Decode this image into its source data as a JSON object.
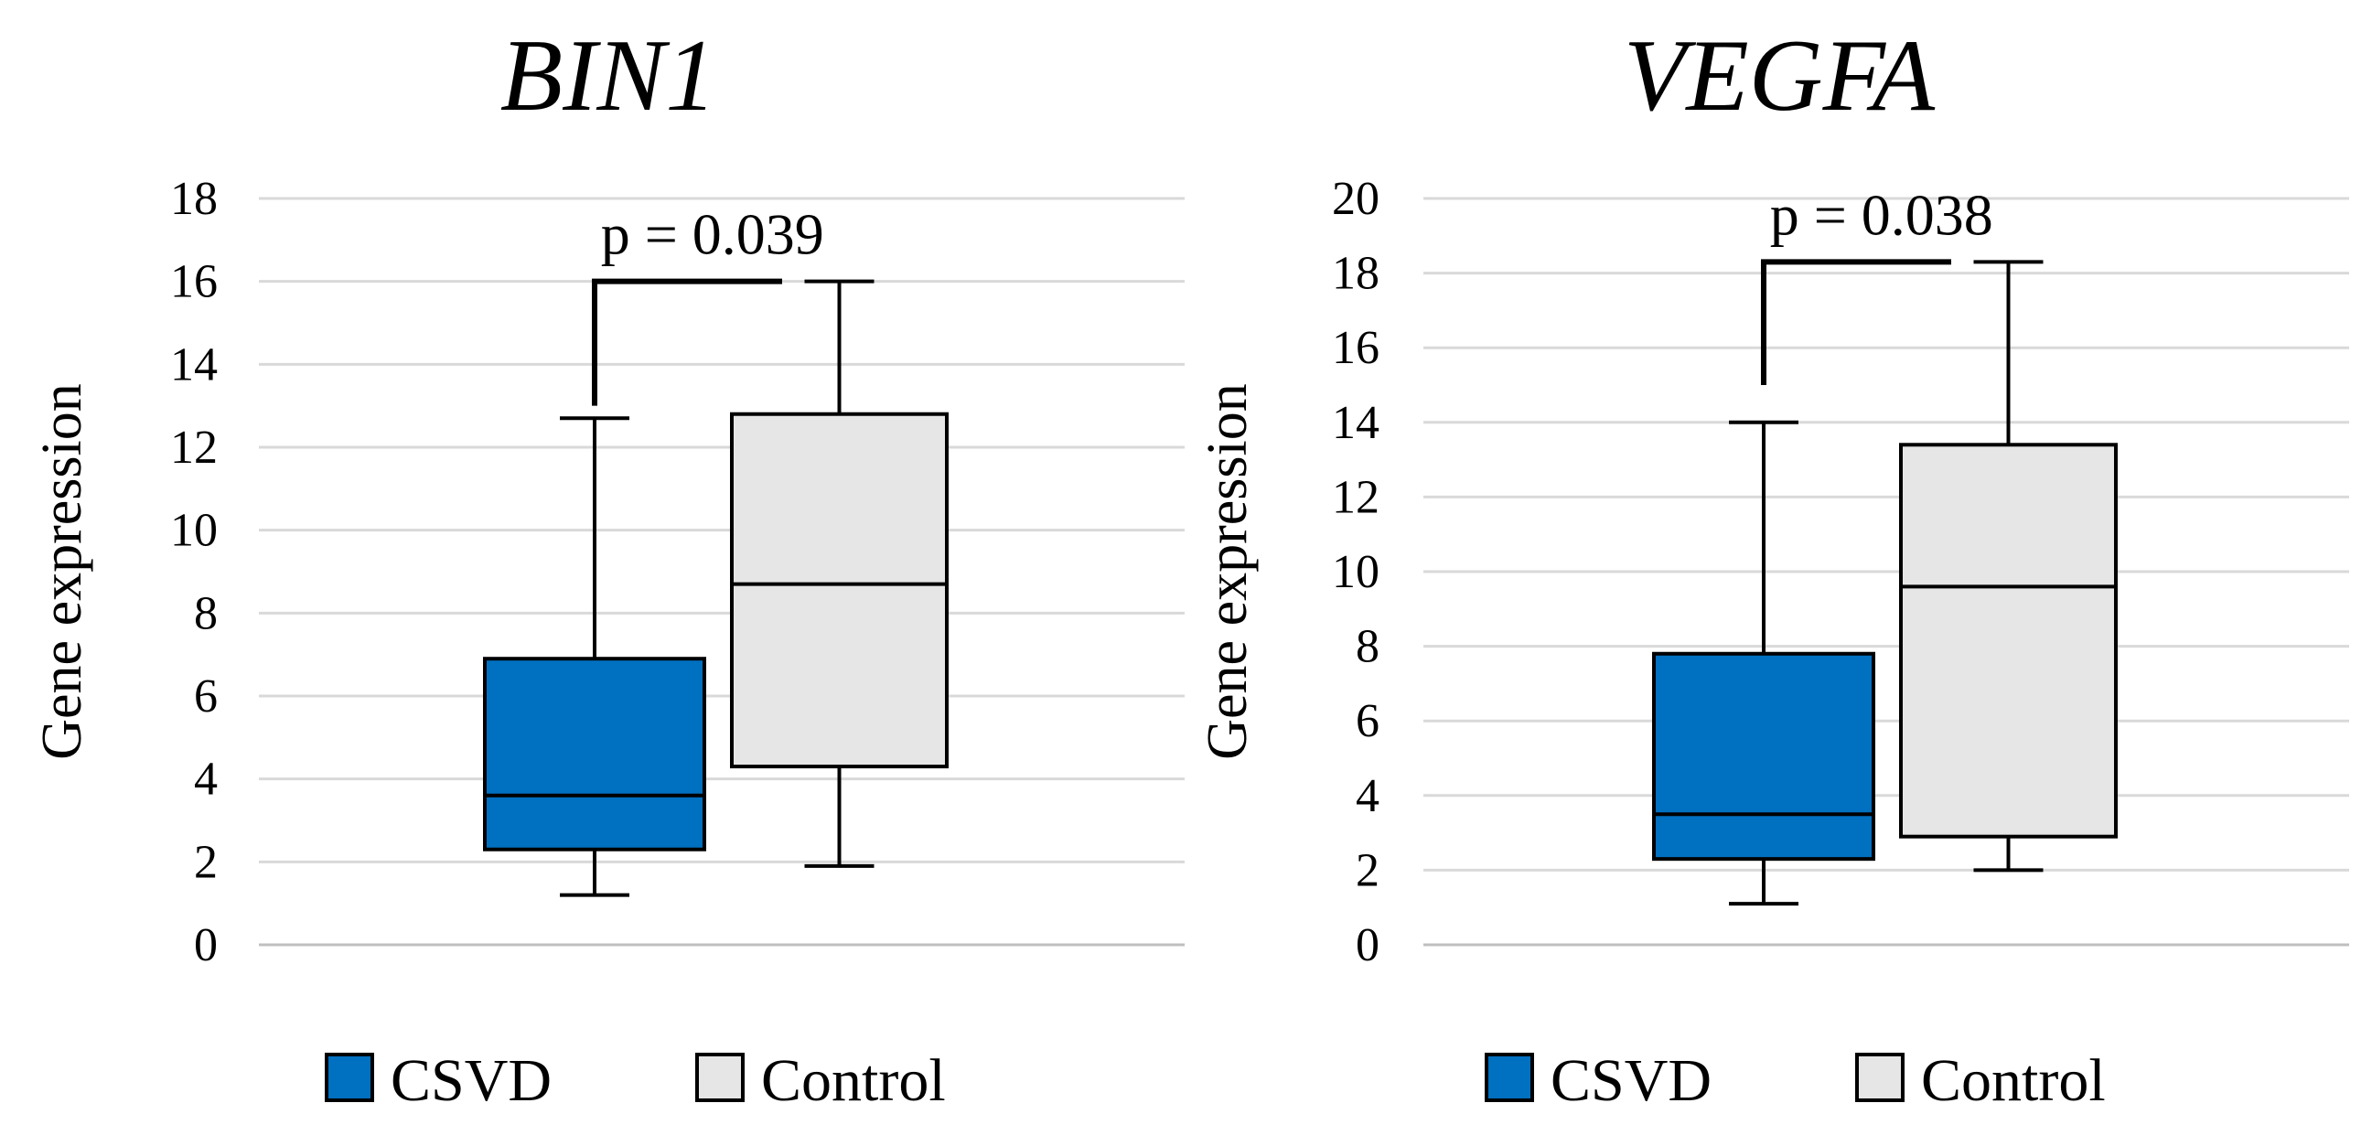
{
  "chart_data": [
    {
      "type": "boxplot",
      "title": "BIN1",
      "ylabel": "Gene expression",
      "xlabel": "",
      "ylim": [
        0,
        18
      ],
      "yticks": [
        0,
        2,
        4,
        6,
        8,
        10,
        12,
        14,
        16,
        18
      ],
      "grid": true,
      "legend_position": "bottom",
      "series": [
        {
          "name": "CSVD",
          "color": "#0070C0",
          "min": 1.2,
          "q1": 2.3,
          "median": 3.6,
          "q3": 6.9,
          "max": 12.7
        },
        {
          "name": "Control",
          "color": "#E6E6E6",
          "min": 1.9,
          "q1": 4.3,
          "median": 8.7,
          "q3": 12.8,
          "max": 16.0
        }
      ],
      "annotation": {
        "text": "p = 0.039",
        "bracket_y": 16.0,
        "left_drop_to": 13.0
      }
    },
    {
      "type": "boxplot",
      "title": "VEGFA",
      "ylabel": "Gene expression",
      "xlabel": "",
      "ylim": [
        0,
        20
      ],
      "yticks": [
        0,
        2,
        4,
        6,
        8,
        10,
        12,
        14,
        16,
        18,
        20
      ],
      "grid": true,
      "legend_position": "bottom",
      "series": [
        {
          "name": "CSVD",
          "color": "#0070C0",
          "min": 1.1,
          "q1": 2.3,
          "median": 3.5,
          "q3": 7.8,
          "max": 14.0
        },
        {
          "name": "Control",
          "color": "#E6E6E6",
          "min": 2.0,
          "q1": 2.9,
          "median": 9.6,
          "q3": 13.4,
          "max": 18.3
        }
      ],
      "annotation": {
        "text": "p = 0.038",
        "bracket_y": 18.3,
        "left_drop_to": 15.0
      }
    }
  ],
  "legend": {
    "items": [
      {
        "label": "CSVD",
        "color": "#0070C0"
      },
      {
        "label": "Control",
        "color": "#E6E6E6"
      }
    ]
  }
}
